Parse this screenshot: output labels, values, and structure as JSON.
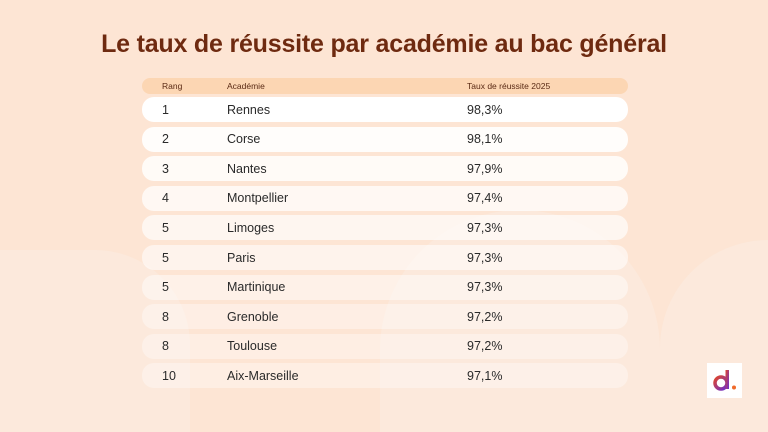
{
  "title": "Le taux de réussite par académie au bac général",
  "table": {
    "headers": [
      "Rang",
      "Académie",
      "Taux de réussite 2025"
    ],
    "rows": [
      [
        "1",
        "Rennes",
        "98,3%"
      ],
      [
        "2",
        "Corse",
        "98,1%"
      ],
      [
        "3",
        "Nantes",
        "97,9%"
      ],
      [
        "4",
        "Montpellier",
        "97,4%"
      ],
      [
        "5",
        "Limoges",
        "97,3%"
      ],
      [
        "5",
        "Paris",
        "97,3%"
      ],
      [
        "5",
        "Martinique",
        "97,3%"
      ],
      [
        "8",
        "Grenoble",
        "97,2%"
      ],
      [
        "8",
        "Toulouse",
        "97,2%"
      ],
      [
        "10",
        "Aix-Marseille",
        "97,1%"
      ]
    ]
  },
  "logo": {
    "text": "d.",
    "colors": {
      "letter": "#7a2fc0",
      "dot": "#f06a2a"
    }
  }
}
